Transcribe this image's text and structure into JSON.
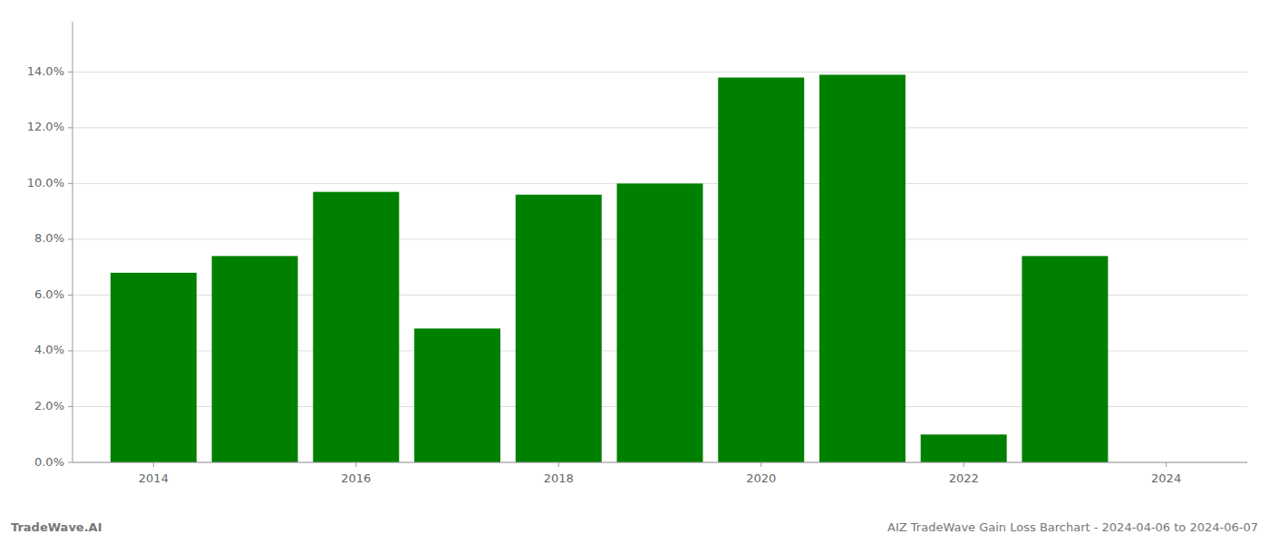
{
  "chart_data": {
    "type": "bar",
    "title": "AIZ TradeWave Gain Loss Barchart - 2024-04-06 to 2024-06-07",
    "annotations": [
      "TradeWave.AI"
    ],
    "x": [
      2014,
      2015,
      2016,
      2017,
      2018,
      2019,
      2020,
      2021,
      2022,
      2023
    ],
    "values": [
      0.068,
      0.074,
      0.097,
      0.048,
      0.096,
      0.1,
      0.138,
      0.139,
      0.01,
      0.074
    ],
    "color": "#008000",
    "xlim": [
      2013.2,
      2024.8
    ],
    "xticks": [
      2014,
      2016,
      2018,
      2020,
      2022,
      2024
    ],
    "ylim": [
      0,
      0.158
    ],
    "yticks": [
      {
        "value": 0.0,
        "label": "0.0%"
      },
      {
        "value": 0.02,
        "label": "2.0%"
      },
      {
        "value": 0.04,
        "label": "4.0%"
      },
      {
        "value": 0.06,
        "label": "6.0%"
      },
      {
        "value": 0.08,
        "label": "8.0%"
      },
      {
        "value": 0.1,
        "label": "10.0%"
      },
      {
        "value": 0.12,
        "label": "12.0%"
      },
      {
        "value": 0.14,
        "label": "14.0%"
      }
    ],
    "grid": true
  }
}
